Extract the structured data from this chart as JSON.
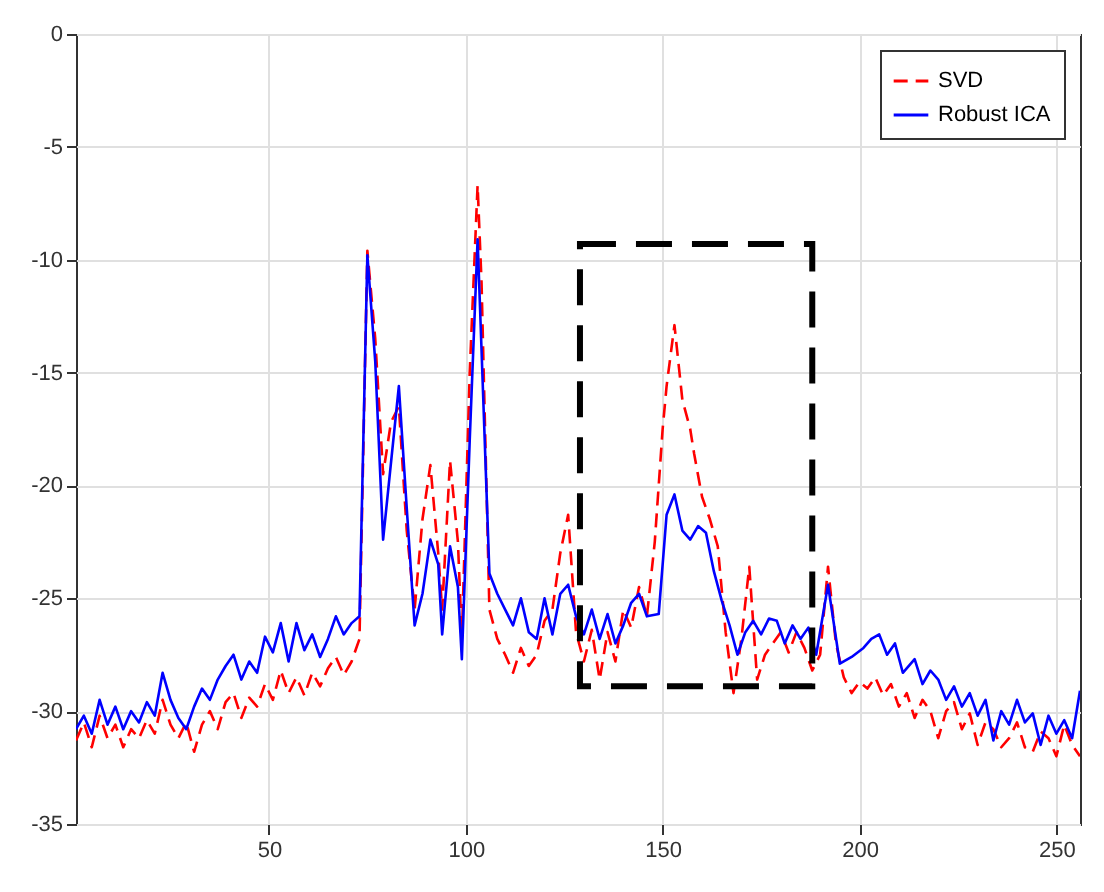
{
  "chart_data": {
    "type": "line",
    "xlim": [
      1,
      256
    ],
    "xticks": [
      50,
      100,
      150,
      200,
      250
    ],
    "ylim": [
      -35,
      0
    ],
    "yticks": [
      -35,
      -30,
      -25,
      -20,
      -15,
      -10,
      -5,
      0
    ],
    "grid": true,
    "legend": "top right",
    "series": [
      {
        "name": "SVD",
        "color": "#ff0000",
        "line_style": "dashed",
        "x": [
          1,
          3,
          5,
          7,
          9,
          11,
          13,
          15,
          17,
          19,
          21,
          23,
          25,
          27,
          29,
          31,
          33,
          35,
          37,
          39,
          41,
          43,
          45,
          47,
          49,
          51,
          53,
          55,
          57,
          59,
          61,
          63,
          65,
          67,
          69,
          71,
          73,
          75,
          77,
          79,
          81,
          83,
          85,
          87,
          89,
          91,
          93,
          94,
          96,
          98,
          99,
          101,
          103,
          104,
          106,
          108,
          110,
          112,
          114,
          116,
          118,
          120,
          122,
          124,
          126,
          128,
          130,
          132,
          134,
          136,
          138,
          140,
          142,
          144,
          146,
          148,
          150,
          151,
          153,
          155,
          157,
          158,
          160,
          162,
          164,
          166,
          168,
          170,
          172,
          174,
          176,
          178,
          180,
          182,
          184,
          186,
          188,
          190,
          192,
          194,
          196,
          198,
          200,
          202,
          204,
          206,
          208,
          210,
          212,
          214,
          216,
          218,
          220,
          222,
          224,
          226,
          228,
          230,
          232,
          234,
          236,
          238,
          240,
          242,
          244,
          246,
          248,
          250,
          252,
          254,
          256
        ],
        "values": [
          -31.3,
          -30.5,
          -31.6,
          -30.2,
          -31.2,
          -30.6,
          -31.6,
          -30.8,
          -31.2,
          -30.4,
          -31,
          -29.5,
          -30.6,
          -31.2,
          -30.5,
          -31.8,
          -30.6,
          -30,
          -30.8,
          -29.6,
          -29.2,
          -30.3,
          -29.4,
          -29.8,
          -28.8,
          -29.5,
          -28.2,
          -29.2,
          -28.5,
          -29.3,
          -28.3,
          -28.9,
          -28.1,
          -27.6,
          -28.4,
          -27.8,
          -26.8,
          -9.6,
          -13.5,
          -19.5,
          -17.2,
          -16.5,
          -22,
          -25.5,
          -21.5,
          -19.1,
          -23,
          -25.5,
          -18.9,
          -22.5,
          -26.8,
          -15,
          -6.7,
          -11,
          -25.5,
          -26.8,
          -27.5,
          -28.3,
          -27.2,
          -28,
          -27.5,
          -26,
          -25.5,
          -23,
          -21.3,
          -26.5,
          -27.8,
          -26.4,
          -28.6,
          -26.5,
          -27.8,
          -25.5,
          -26.3,
          -24.5,
          -25.8,
          -22.5,
          -17.5,
          -15.6,
          -12.9,
          -16.2,
          -17.5,
          -18.6,
          -20.5,
          -21.5,
          -22.7,
          -26.5,
          -29.2,
          -26.8,
          -23.6,
          -28.6,
          -27.5,
          -27,
          -26.5,
          -27.4,
          -26.5,
          -27.2,
          -28.2,
          -27.5,
          -23.6,
          -27,
          -28.5,
          -29.2,
          -28.7,
          -29,
          -28.5,
          -29.3,
          -28.8,
          -29.8,
          -29.2,
          -30.3,
          -29.5,
          -30,
          -31.2,
          -30,
          -29.6,
          -30.8,
          -30.1,
          -31.5,
          -30.5,
          -30.8,
          -31.6,
          -31.2,
          -30.5,
          -31.6,
          -31.8,
          -30.9,
          -31.2,
          -32,
          -30.6,
          -31.5,
          -32
        ]
      },
      {
        "name": "Robust ICA",
        "color": "#0000ff",
        "line_style": "solid",
        "x": [
          1,
          3,
          5,
          7,
          9,
          11,
          13,
          15,
          17,
          19,
          21,
          23,
          25,
          27,
          29,
          31,
          33,
          35,
          37,
          39,
          41,
          43,
          45,
          47,
          49,
          51,
          53,
          55,
          57,
          59,
          61,
          63,
          65,
          67,
          69,
          71,
          73,
          75,
          77,
          79,
          81,
          83,
          85,
          87,
          89,
          91,
          93,
          94,
          96,
          98,
          99,
          101,
          103,
          104,
          106,
          108,
          110,
          112,
          114,
          116,
          118,
          120,
          122,
          124,
          126,
          128,
          130,
          132,
          134,
          136,
          138,
          140,
          142,
          144,
          146,
          149,
          151,
          153,
          155,
          157,
          159,
          161,
          163,
          165,
          167,
          169,
          171,
          173,
          175,
          177,
          179,
          181,
          183,
          185,
          187,
          189,
          192,
          195,
          198,
          201,
          203,
          205,
          207,
          209,
          211,
          214,
          216,
          218,
          220,
          222,
          224,
          226,
          228,
          230,
          232,
          234,
          236,
          238,
          240,
          242,
          244,
          246,
          248,
          250,
          252,
          254,
          256
        ],
        "values": [
          -30.8,
          -30.2,
          -31,
          -29.5,
          -30.6,
          -29.8,
          -30.8,
          -30,
          -30.5,
          -29.6,
          -30.2,
          -28.3,
          -29.5,
          -30.3,
          -30.8,
          -29.8,
          -29,
          -29.5,
          -28.6,
          -28,
          -27.5,
          -28.6,
          -27.8,
          -28.3,
          -26.7,
          -27.4,
          -26.1,
          -27.8,
          -26.1,
          -27.3,
          -26.6,
          -27.6,
          -26.8,
          -25.8,
          -26.6,
          -26.1,
          -25.8,
          -9.8,
          -14.5,
          -22.4,
          -19,
          -15.6,
          -21,
          -26.2,
          -24.8,
          -22.4,
          -23.5,
          -26.6,
          -22.7,
          -24.5,
          -27.7,
          -18,
          -9.1,
          -14,
          -23.9,
          -24.8,
          -25.5,
          -26.2,
          -25,
          -26.5,
          -26.8,
          -25,
          -26.6,
          -24.8,
          -24.4,
          -25.8,
          -26.6,
          -25.5,
          -26.8,
          -25.7,
          -27,
          -26.2,
          -25.2,
          -24.8,
          -25.8,
          -25.7,
          -21.3,
          -20.4,
          -22,
          -22.4,
          -21.8,
          -22.1,
          -23.8,
          -25.1,
          -26.2,
          -27.5,
          -26.5,
          -26,
          -26.6,
          -25.9,
          -26,
          -27,
          -26.2,
          -26.8,
          -26.3,
          -27.5,
          -24.4,
          -27.9,
          -27.6,
          -27.2,
          -26.8,
          -26.6,
          -27.5,
          -27,
          -28.3,
          -27.7,
          -28.8,
          -28.2,
          -28.6,
          -29.5,
          -28.9,
          -29.8,
          -29.2,
          -30.2,
          -29.5,
          -31.3,
          -30,
          -30.6,
          -29.5,
          -30.5,
          -30.1,
          -31.5,
          -30.2,
          -31,
          -30.4,
          -31.2,
          -29.1
        ]
      }
    ]
  }
}
